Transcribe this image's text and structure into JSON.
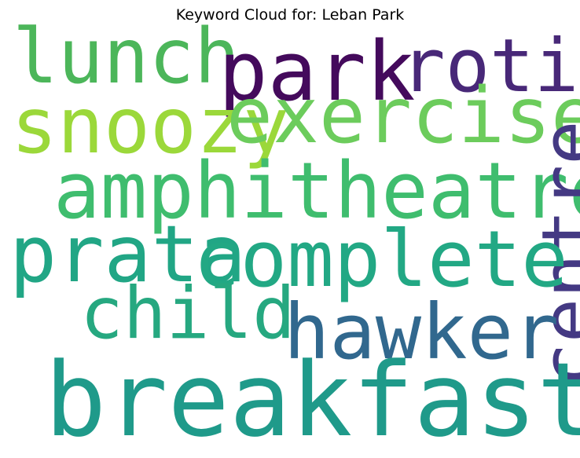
{
  "title": "Keyword Cloud for: Leban Park",
  "words": [
    {
      "key": "lunch",
      "text": "lunch",
      "color": "#4cb65a"
    },
    {
      "key": "park",
      "text": "park",
      "color": "#440a5c"
    },
    {
      "key": "roti",
      "text": "roti",
      "color": "#482878"
    },
    {
      "key": "snoozy",
      "text": "snoozy",
      "color": "#9bd83a"
    },
    {
      "key": "exercise",
      "text": "exercise",
      "color": "#6ccc5c"
    },
    {
      "key": "amphitheatre",
      "text": "amphitheatre",
      "color": "#3fbd6e"
    },
    {
      "key": "centre",
      "text": "centre",
      "color": "#443983"
    },
    {
      "key": "prata",
      "text": "prata",
      "color": "#21a685"
    },
    {
      "key": "complete",
      "text": "complete",
      "color": "#22a884"
    },
    {
      "key": "child",
      "text": "child",
      "color": "#26a880"
    },
    {
      "key": "hawker",
      "text": "hawker",
      "color": "#31688e"
    },
    {
      "key": "breakfast",
      "text": "breakfast",
      "color": "#1f9a8a"
    }
  ]
}
